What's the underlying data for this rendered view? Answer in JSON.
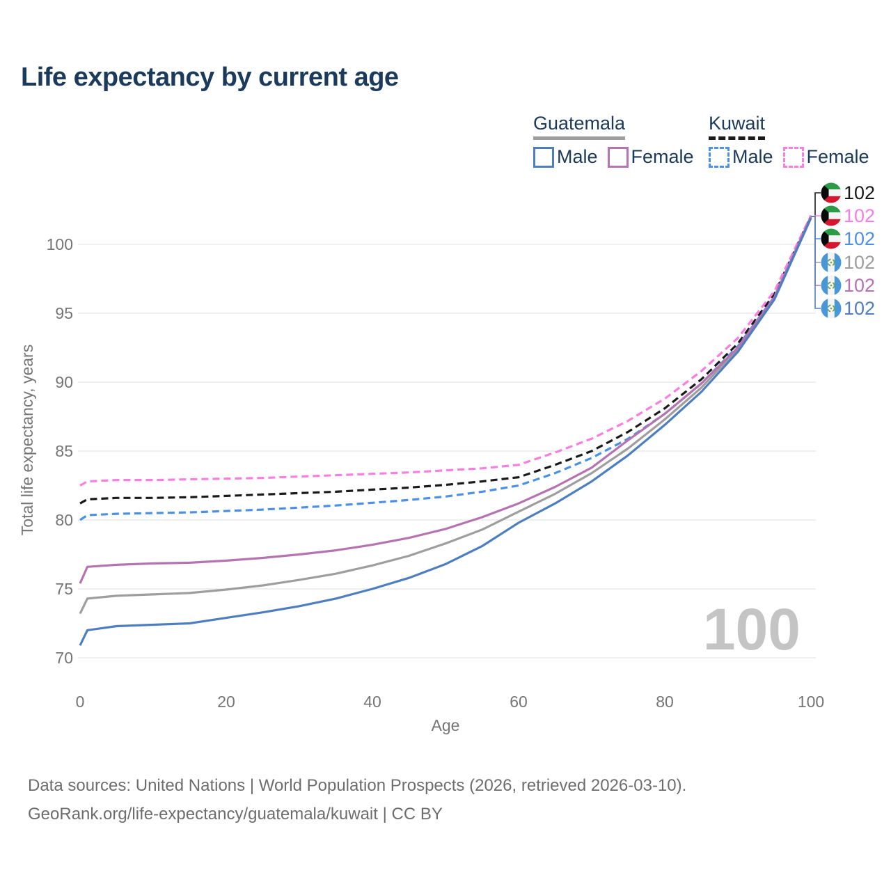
{
  "title": "Life expectancy by current age",
  "legend": {
    "groups": [
      {
        "label": "Guatemala",
        "color": "#9e9e9e",
        "line_style": "solid",
        "items": [
          {
            "label": "Male",
            "color": "#4d7ebf"
          },
          {
            "label": "Female",
            "color": "#b573b1"
          }
        ]
      },
      {
        "label": "Kuwait",
        "color": "#1a1a1a",
        "line_style": "dashed",
        "items": [
          {
            "label": "Male",
            "color": "#4a90e8"
          },
          {
            "label": "Female",
            "color": "#fb7ce3"
          }
        ]
      }
    ]
  },
  "chart_data": {
    "type": "line",
    "title": "Life expectancy by current age",
    "xlabel": "Age",
    "ylabel": "Total life expectancy, years",
    "xlim": [
      0,
      100
    ],
    "ylim": [
      70,
      100
    ],
    "x_ticks": [
      "0",
      "20",
      "40",
      "60",
      "80",
      "100"
    ],
    "y_ticks": [
      "70",
      "75",
      "80",
      "85",
      "90",
      "95",
      "100"
    ],
    "grid": "horizontal-only",
    "legend_position": "top-right",
    "x": [
      0,
      1,
      5,
      10,
      15,
      20,
      25,
      30,
      35,
      40,
      45,
      50,
      55,
      60,
      65,
      70,
      75,
      80,
      85,
      90,
      95,
      100
    ],
    "series": [
      {
        "id": "kuwait-all",
        "name": "Kuwait (all)",
        "country": "Kuwait",
        "sex": "all",
        "color": "#1a1a1a",
        "dashed": true,
        "values": [
          81.2,
          81.5,
          81.6,
          81.6,
          81.65,
          81.75,
          81.85,
          81.95,
          82.05,
          82.2,
          82.35,
          82.55,
          82.8,
          83.1,
          84.0,
          85.0,
          86.4,
          88.1,
          90.2,
          92.8,
          96.4,
          102.05
        ]
      },
      {
        "id": "kuwait-female",
        "name": "Kuwait Female",
        "country": "Kuwait",
        "sex": "female",
        "color": "#fb7ce3",
        "dashed": true,
        "values": [
          82.5,
          82.8,
          82.9,
          82.9,
          82.95,
          83.0,
          83.05,
          83.15,
          83.25,
          83.35,
          83.45,
          83.6,
          83.75,
          84.0,
          84.9,
          85.9,
          87.2,
          88.8,
          90.8,
          93.2,
          96.6,
          102.1
        ]
      },
      {
        "id": "kuwait-male",
        "name": "Kuwait Male",
        "country": "Kuwait",
        "sex": "male",
        "color": "#4a90e8",
        "dashed": true,
        "values": [
          80.0,
          80.35,
          80.45,
          80.5,
          80.55,
          80.65,
          80.75,
          80.9,
          81.05,
          81.25,
          81.45,
          81.7,
          82.05,
          82.5,
          83.4,
          84.5,
          85.9,
          87.7,
          89.9,
          92.6,
          96.2,
          102.0
        ]
      },
      {
        "id": "guatemala-all",
        "name": "Guatemala (all)",
        "country": "Guatemala",
        "sex": "all",
        "color": "#9e9e9e",
        "dashed": false,
        "values": [
          73.2,
          74.3,
          74.5,
          74.6,
          74.7,
          74.95,
          75.25,
          75.65,
          76.1,
          76.7,
          77.4,
          78.3,
          79.3,
          80.6,
          81.9,
          83.4,
          85.2,
          87.3,
          89.6,
          92.4,
          96.1,
          101.95
        ]
      },
      {
        "id": "guatemala-female",
        "name": "Guatemala Female",
        "country": "Guatemala",
        "sex": "female",
        "color": "#b573b1",
        "dashed": false,
        "values": [
          75.4,
          76.6,
          76.75,
          76.85,
          76.9,
          77.05,
          77.25,
          77.5,
          77.8,
          78.2,
          78.7,
          79.35,
          80.2,
          81.2,
          82.4,
          83.8,
          85.8,
          87.7,
          89.9,
          92.5,
          96.15,
          102.0
        ]
      },
      {
        "id": "guatemala-male",
        "name": "Guatemala Male",
        "country": "Guatemala",
        "sex": "male",
        "color": "#4d7ebf",
        "dashed": false,
        "values": [
          70.9,
          72.0,
          72.3,
          72.4,
          72.5,
          72.9,
          73.3,
          73.75,
          74.3,
          75.0,
          75.8,
          76.8,
          78.1,
          79.8,
          81.2,
          82.8,
          84.7,
          86.9,
          89.3,
          92.2,
          96.0,
          101.9
        ]
      }
    ]
  },
  "end_labels": [
    {
      "country": "Kuwait",
      "series": "Kuwait (all)",
      "value": "102",
      "color": "#1a1a1a",
      "flag": "kuwait"
    },
    {
      "country": "Kuwait",
      "series": "Kuwait Female",
      "value": "102",
      "color": "#fb7ce3",
      "flag": "kuwait"
    },
    {
      "country": "Kuwait",
      "series": "Kuwait Male",
      "value": "102",
      "color": "#4a90e8",
      "flag": "kuwait"
    },
    {
      "country": "Guatemala",
      "series": "Guatemala (all)",
      "value": "102",
      "color": "#9e9e9e",
      "flag": "guatemala"
    },
    {
      "country": "Guatemala",
      "series": "Guatemala Female",
      "value": "102",
      "color": "#b573b1",
      "flag": "guatemala"
    },
    {
      "country": "Guatemala",
      "series": "Guatemala Male",
      "value": "102",
      "color": "#4d7ebf",
      "flag": "guatemala"
    }
  ],
  "age_indicator": "100",
  "footer": {
    "line1": "Data sources: United Nations | World Population Prospects (2026, retrieved 2026-03-10).",
    "line2": "GeoRank.org/life-expectancy/guatemala/kuwait | CC BY"
  }
}
